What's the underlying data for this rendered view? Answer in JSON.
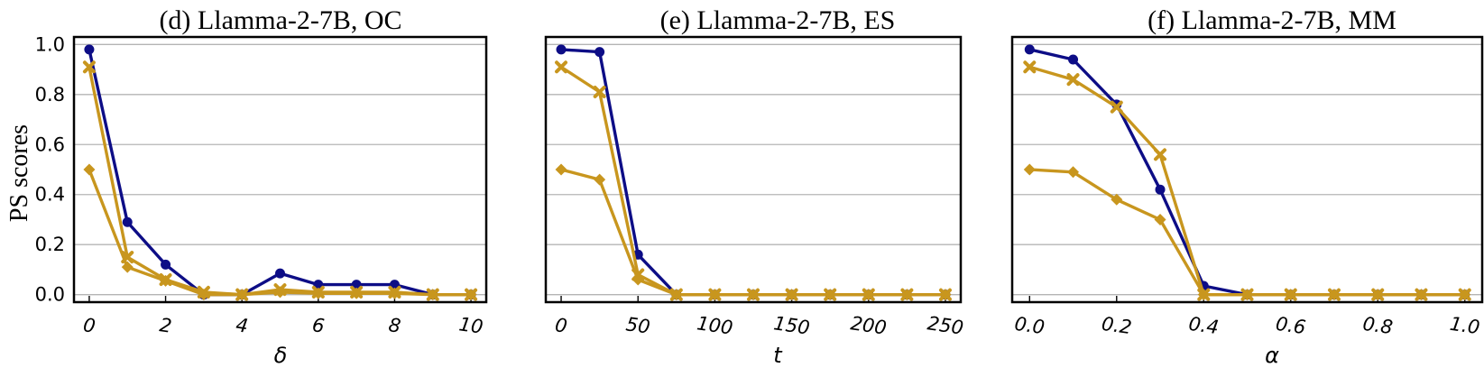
{
  "colors": {
    "navy": "#0d0d86",
    "gold": "#c8961e",
    "grid": "#b4b4b4",
    "frame": "#000000"
  },
  "chart_data": [
    {
      "type": "line",
      "title": "(d) Llamma-2-7B, OC",
      "xlabel": "δ",
      "ylabel": "PS scores",
      "x": [
        0,
        1,
        2,
        3,
        4,
        5,
        6,
        7,
        8,
        9,
        10
      ],
      "xticks": [
        "0",
        "2",
        "4",
        "6",
        "8",
        "10"
      ],
      "xtick_values": [
        0,
        2,
        4,
        6,
        8,
        10
      ],
      "xlim": [
        -0.4,
        10.4
      ],
      "ylim": [
        -0.03,
        1.03
      ],
      "yticks": [
        "0.0",
        "0.2",
        "0.4",
        "0.6",
        "0.8",
        "1.0"
      ],
      "grid": true,
      "series": [
        {
          "marker": "circle",
          "color": "#0d0d86",
          "values": [
            0.98,
            0.29,
            0.12,
            0.0,
            0.0,
            0.085,
            0.04,
            0.04,
            0.04,
            0.0,
            0.0
          ]
        },
        {
          "marker": "x",
          "color": "#c8961e",
          "values": [
            0.91,
            0.15,
            0.06,
            0.01,
            0.0,
            0.02,
            0.01,
            0.01,
            0.01,
            0.0,
            0.0
          ]
        },
        {
          "marker": "diamond",
          "color": "#c8961e",
          "values": [
            0.5,
            0.11,
            0.055,
            0.0,
            0.0,
            0.01,
            0.005,
            0.005,
            0.005,
            0.0,
            0.0
          ]
        }
      ]
    },
    {
      "type": "line",
      "title": "(e) Llamma-2-7B, ES",
      "xlabel": "t",
      "ylabel": "",
      "x": [
        0,
        25,
        50,
        75,
        100,
        125,
        150,
        175,
        200,
        225,
        250
      ],
      "xticks": [
        "0",
        "50",
        "100",
        "150",
        "200",
        "250"
      ],
      "xtick_values": [
        0,
        50,
        100,
        150,
        200,
        250
      ],
      "xlim": [
        -10,
        260
      ],
      "ylim": [
        -0.03,
        1.03
      ],
      "yticks": [],
      "grid": true,
      "series": [
        {
          "marker": "circle",
          "color": "#0d0d86",
          "values": [
            0.98,
            0.97,
            0.16,
            0.0,
            0.0,
            0.0,
            0.0,
            0.0,
            0.0,
            0.0,
            0.0
          ]
        },
        {
          "marker": "x",
          "color": "#c8961e",
          "values": [
            0.91,
            0.81,
            0.08,
            0.0,
            0.0,
            0.0,
            0.0,
            0.0,
            0.0,
            0.0,
            0.0
          ]
        },
        {
          "marker": "diamond",
          "color": "#c8961e",
          "values": [
            0.5,
            0.46,
            0.06,
            0.0,
            0.0,
            0.0,
            0.0,
            0.0,
            0.0,
            0.0,
            0.0
          ]
        }
      ]
    },
    {
      "type": "line",
      "title": "(f) Llamma-2-7B, MM",
      "xlabel": "α",
      "ylabel": "",
      "x": [
        0.0,
        0.1,
        0.2,
        0.3,
        0.4,
        0.5,
        0.6,
        0.7,
        0.8,
        0.9,
        1.0
      ],
      "xticks": [
        "0.0",
        "0.2",
        "0.4",
        "0.6",
        "0.8",
        "1.0"
      ],
      "xtick_values": [
        0.0,
        0.2,
        0.4,
        0.6,
        0.8,
        1.0
      ],
      "xlim": [
        -0.04,
        1.04
      ],
      "ylim": [
        -0.03,
        1.03
      ],
      "yticks": [],
      "grid": true,
      "series": [
        {
          "marker": "circle",
          "color": "#0d0d86",
          "values": [
            0.98,
            0.94,
            0.76,
            0.42,
            0.035,
            0.0,
            0.0,
            0.0,
            0.0,
            0.0,
            0.0
          ]
        },
        {
          "marker": "x",
          "color": "#c8961e",
          "values": [
            0.91,
            0.86,
            0.75,
            0.56,
            0.0,
            0.0,
            0.0,
            0.0,
            0.0,
            0.0,
            0.0
          ]
        },
        {
          "marker": "diamond",
          "color": "#c8961e",
          "values": [
            0.5,
            0.49,
            0.38,
            0.3,
            0.0,
            0.0,
            0.0,
            0.0,
            0.0,
            0.0,
            0.0
          ]
        }
      ]
    }
  ]
}
